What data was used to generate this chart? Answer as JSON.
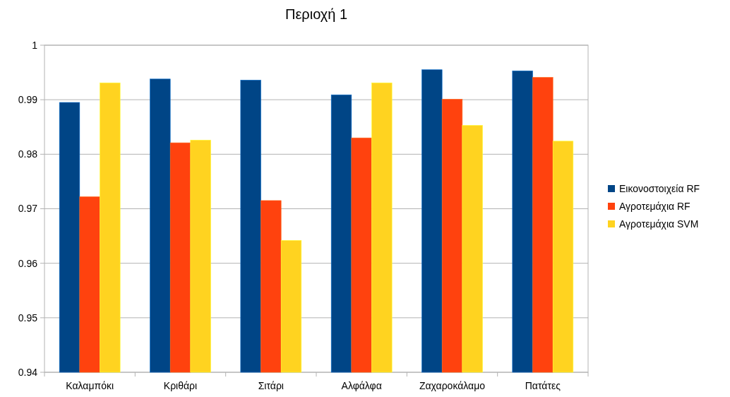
{
  "chart_data": {
    "type": "bar",
    "title": "Περιοχή 1",
    "categories": [
      "Καλαμπόκι",
      "Κριθάρι",
      "Σιτάρι",
      "Αλφάλφα",
      "Ζαχαροκάλαμο",
      "Πατάτες"
    ],
    "series": [
      {
        "name": "Εικονοστοιχεία RF",
        "color": "#004586",
        "values": [
          0.9895,
          0.9938,
          0.9936,
          0.9909,
          0.9955,
          0.9953
        ]
      },
      {
        "name": "Αγροτεμάχια RF",
        "color": "#ff420e",
        "values": [
          0.9722,
          0.9821,
          0.9715,
          0.983,
          0.9901,
          0.9941
        ]
      },
      {
        "name": "Αγροτεμάχια SVM",
        "color": "#ffd320",
        "values": [
          0.9931,
          0.9826,
          0.9642,
          0.9931,
          0.9853,
          0.9824
        ]
      }
    ],
    "ylim": [
      0.94,
      1
    ],
    "yticks": [
      0.94,
      0.95,
      0.96,
      0.97,
      0.98,
      0.99,
      1
    ],
    "grid": "y",
    "legend": "right"
  }
}
